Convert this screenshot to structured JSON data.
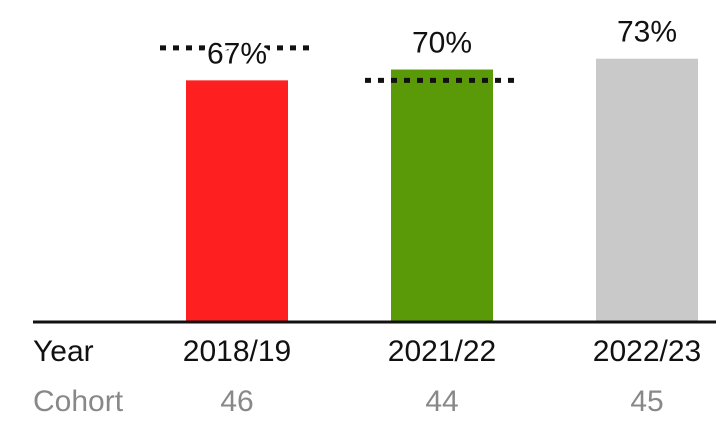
{
  "chart_data": {
    "type": "bar",
    "categories": [
      "2018/19",
      "2021/22",
      "2022/23"
    ],
    "values": [
      67,
      70,
      73
    ],
    "value_labels": [
      "67%",
      "70%",
      "73%"
    ],
    "colors": [
      "#fe2020",
      "#5a9a08",
      "#c9c9c9"
    ],
    "benchmark": [
      76,
      67,
      null
    ],
    "ylim": [
      0,
      89
    ],
    "row_labels": {
      "year": "Year",
      "cohort": "Cohort"
    },
    "cohort": [
      46,
      44,
      45
    ]
  }
}
